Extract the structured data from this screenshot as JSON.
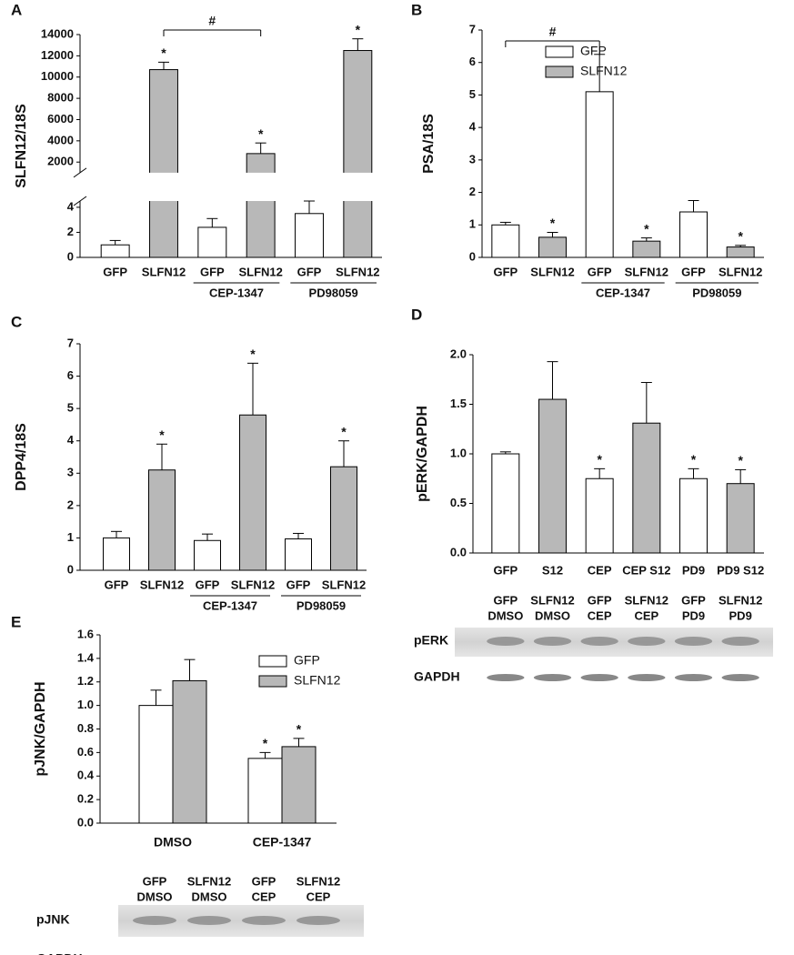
{
  "chart_data": [
    {
      "panel": "A",
      "type": "bar",
      "ylabel": "SLFN12/18S",
      "categories": [
        "GFP",
        "SLFN12",
        "GFP",
        "SLFN12",
        "GFP",
        "SLFN12"
      ],
      "groups": [
        null,
        "CEP-1347",
        "PD98059"
      ],
      "values": [
        1.0,
        10700,
        2.4,
        2800,
        3.5,
        12500
      ],
      "errors": [
        0.35,
        700,
        0.7,
        1000,
        1.0,
        1100
      ],
      "colors": [
        "#ffffff",
        "#b8b8b8",
        "#ffffff",
        "#b8b8b8",
        "#ffffff",
        "#b8b8b8"
      ],
      "marks": [
        null,
        "*",
        null,
        "*",
        null,
        "*"
      ],
      "bracket": {
        "label": "#",
        "from": 1,
        "to": 3
      },
      "ylim": [
        0,
        14000
      ],
      "ybreak": [
        4.5,
        1000
      ],
      "yticks": [
        0,
        2,
        4,
        2000,
        4000,
        6000,
        8000,
        10000,
        12000,
        14000
      ]
    },
    {
      "panel": "B",
      "type": "bar",
      "ylabel": "PSA/18S",
      "categories": [
        "GFP",
        "SLFN12",
        "GFP",
        "SLFN12",
        "GFP",
        "SLFN12"
      ],
      "groups": [
        null,
        "CEP-1347",
        "PD98059"
      ],
      "values": [
        1.0,
        0.62,
        5.1,
        0.5,
        1.4,
        0.32
      ],
      "errors": [
        0.08,
        0.15,
        1.15,
        0.1,
        0.35,
        0.05
      ],
      "colors": [
        "#ffffff",
        "#b8b8b8",
        "#ffffff",
        "#b8b8b8",
        "#ffffff",
        "#b8b8b8"
      ],
      "marks": [
        null,
        "*",
        null,
        "*",
        null,
        "*"
      ],
      "bracket": {
        "label": "#",
        "from": 0,
        "to": 2
      },
      "legend": [
        {
          "name": "GFP",
          "color": "#ffffff"
        },
        {
          "name": "SLFN12",
          "color": "#b8b8b8"
        }
      ],
      "ylim": [
        0,
        7
      ],
      "yticks": [
        0,
        1,
        2,
        3,
        4,
        5,
        6,
        7
      ]
    },
    {
      "panel": "C",
      "type": "bar",
      "ylabel": "DPP4/18S",
      "categories": [
        "GFP",
        "SLFN12",
        "GFP",
        "SLFN12",
        "GFP",
        "SLFN12"
      ],
      "groups": [
        null,
        "CEP-1347",
        "PD98059"
      ],
      "values": [
        1.0,
        3.1,
        0.92,
        4.8,
        0.97,
        3.2
      ],
      "errors": [
        0.2,
        0.8,
        0.2,
        1.6,
        0.17,
        0.8
      ],
      "colors": [
        "#ffffff",
        "#b8b8b8",
        "#ffffff",
        "#b8b8b8",
        "#ffffff",
        "#b8b8b8"
      ],
      "marks": [
        null,
        "*",
        null,
        "*",
        null,
        "*"
      ],
      "ylim": [
        0,
        7
      ],
      "yticks": [
        0,
        1,
        2,
        3,
        4,
        5,
        6,
        7
      ]
    },
    {
      "panel": "D",
      "type": "bar",
      "ylabel": "pERK/GAPDH",
      "categories": [
        "GFP",
        "S12",
        "CEP",
        "CEP S12",
        "PD9",
        "PD9 S12"
      ],
      "values": [
        1.0,
        1.55,
        0.75,
        1.31,
        0.75,
        0.7
      ],
      "errors": [
        0.02,
        0.38,
        0.1,
        0.41,
        0.1,
        0.14
      ],
      "colors": [
        "#ffffff",
        "#b8b8b8",
        "#ffffff",
        "#b8b8b8",
        "#ffffff",
        "#b8b8b8"
      ],
      "marks": [
        null,
        null,
        "*",
        null,
        "*",
        "*"
      ],
      "ylim": [
        0,
        2
      ],
      "yticks": [
        {
          "value": 0,
          "label": "0.0"
        },
        0.5,
        {
          "value": 1,
          "label": "1.0"
        },
        1.5,
        {
          "value": 2,
          "label": "2.0"
        }
      ],
      "blot": {
        "lanes": [
          [
            "GFP",
            "DMSO"
          ],
          [
            "SLFN12",
            "DMSO"
          ],
          [
            "GFP",
            "CEP"
          ],
          [
            "SLFN12",
            "CEP"
          ],
          [
            "GFP",
            "PD9"
          ],
          [
            "SLFN12",
            "PD9"
          ]
        ],
        "rows": [
          "pERK",
          "GAPDH"
        ]
      }
    },
    {
      "panel": "E",
      "type": "grouped_bar",
      "ylabel": "pJNK/GAPDH",
      "categories": [
        "DMSO",
        "CEP-1347"
      ],
      "series": [
        {
          "name": "GFP",
          "color": "#ffffff",
          "values": [
            1.0,
            0.55
          ],
          "errors": [
            0.13,
            0.05
          ],
          "marks": [
            null,
            "*"
          ]
        },
        {
          "name": "SLFN12",
          "color": "#b8b8b8",
          "values": [
            1.21,
            0.65
          ],
          "errors": [
            0.18,
            0.07
          ],
          "marks": [
            null,
            "*"
          ]
        }
      ],
      "ylim": [
        0,
        1.6
      ],
      "yticks": [
        {
          "value": 0,
          "label": "0.0"
        },
        0.2,
        0.4,
        0.6,
        0.8,
        {
          "value": 1,
          "label": "1.0"
        },
        1.2,
        1.4,
        1.6
      ],
      "blot": {
        "lanes": [
          [
            "GFP",
            "DMSO"
          ],
          [
            "SLFN12",
            "DMSO"
          ],
          [
            "GFP",
            "CEP"
          ],
          [
            "SLFN12",
            "CEP"
          ]
        ],
        "rows": [
          "pJNK",
          "GAPDH"
        ]
      }
    }
  ]
}
